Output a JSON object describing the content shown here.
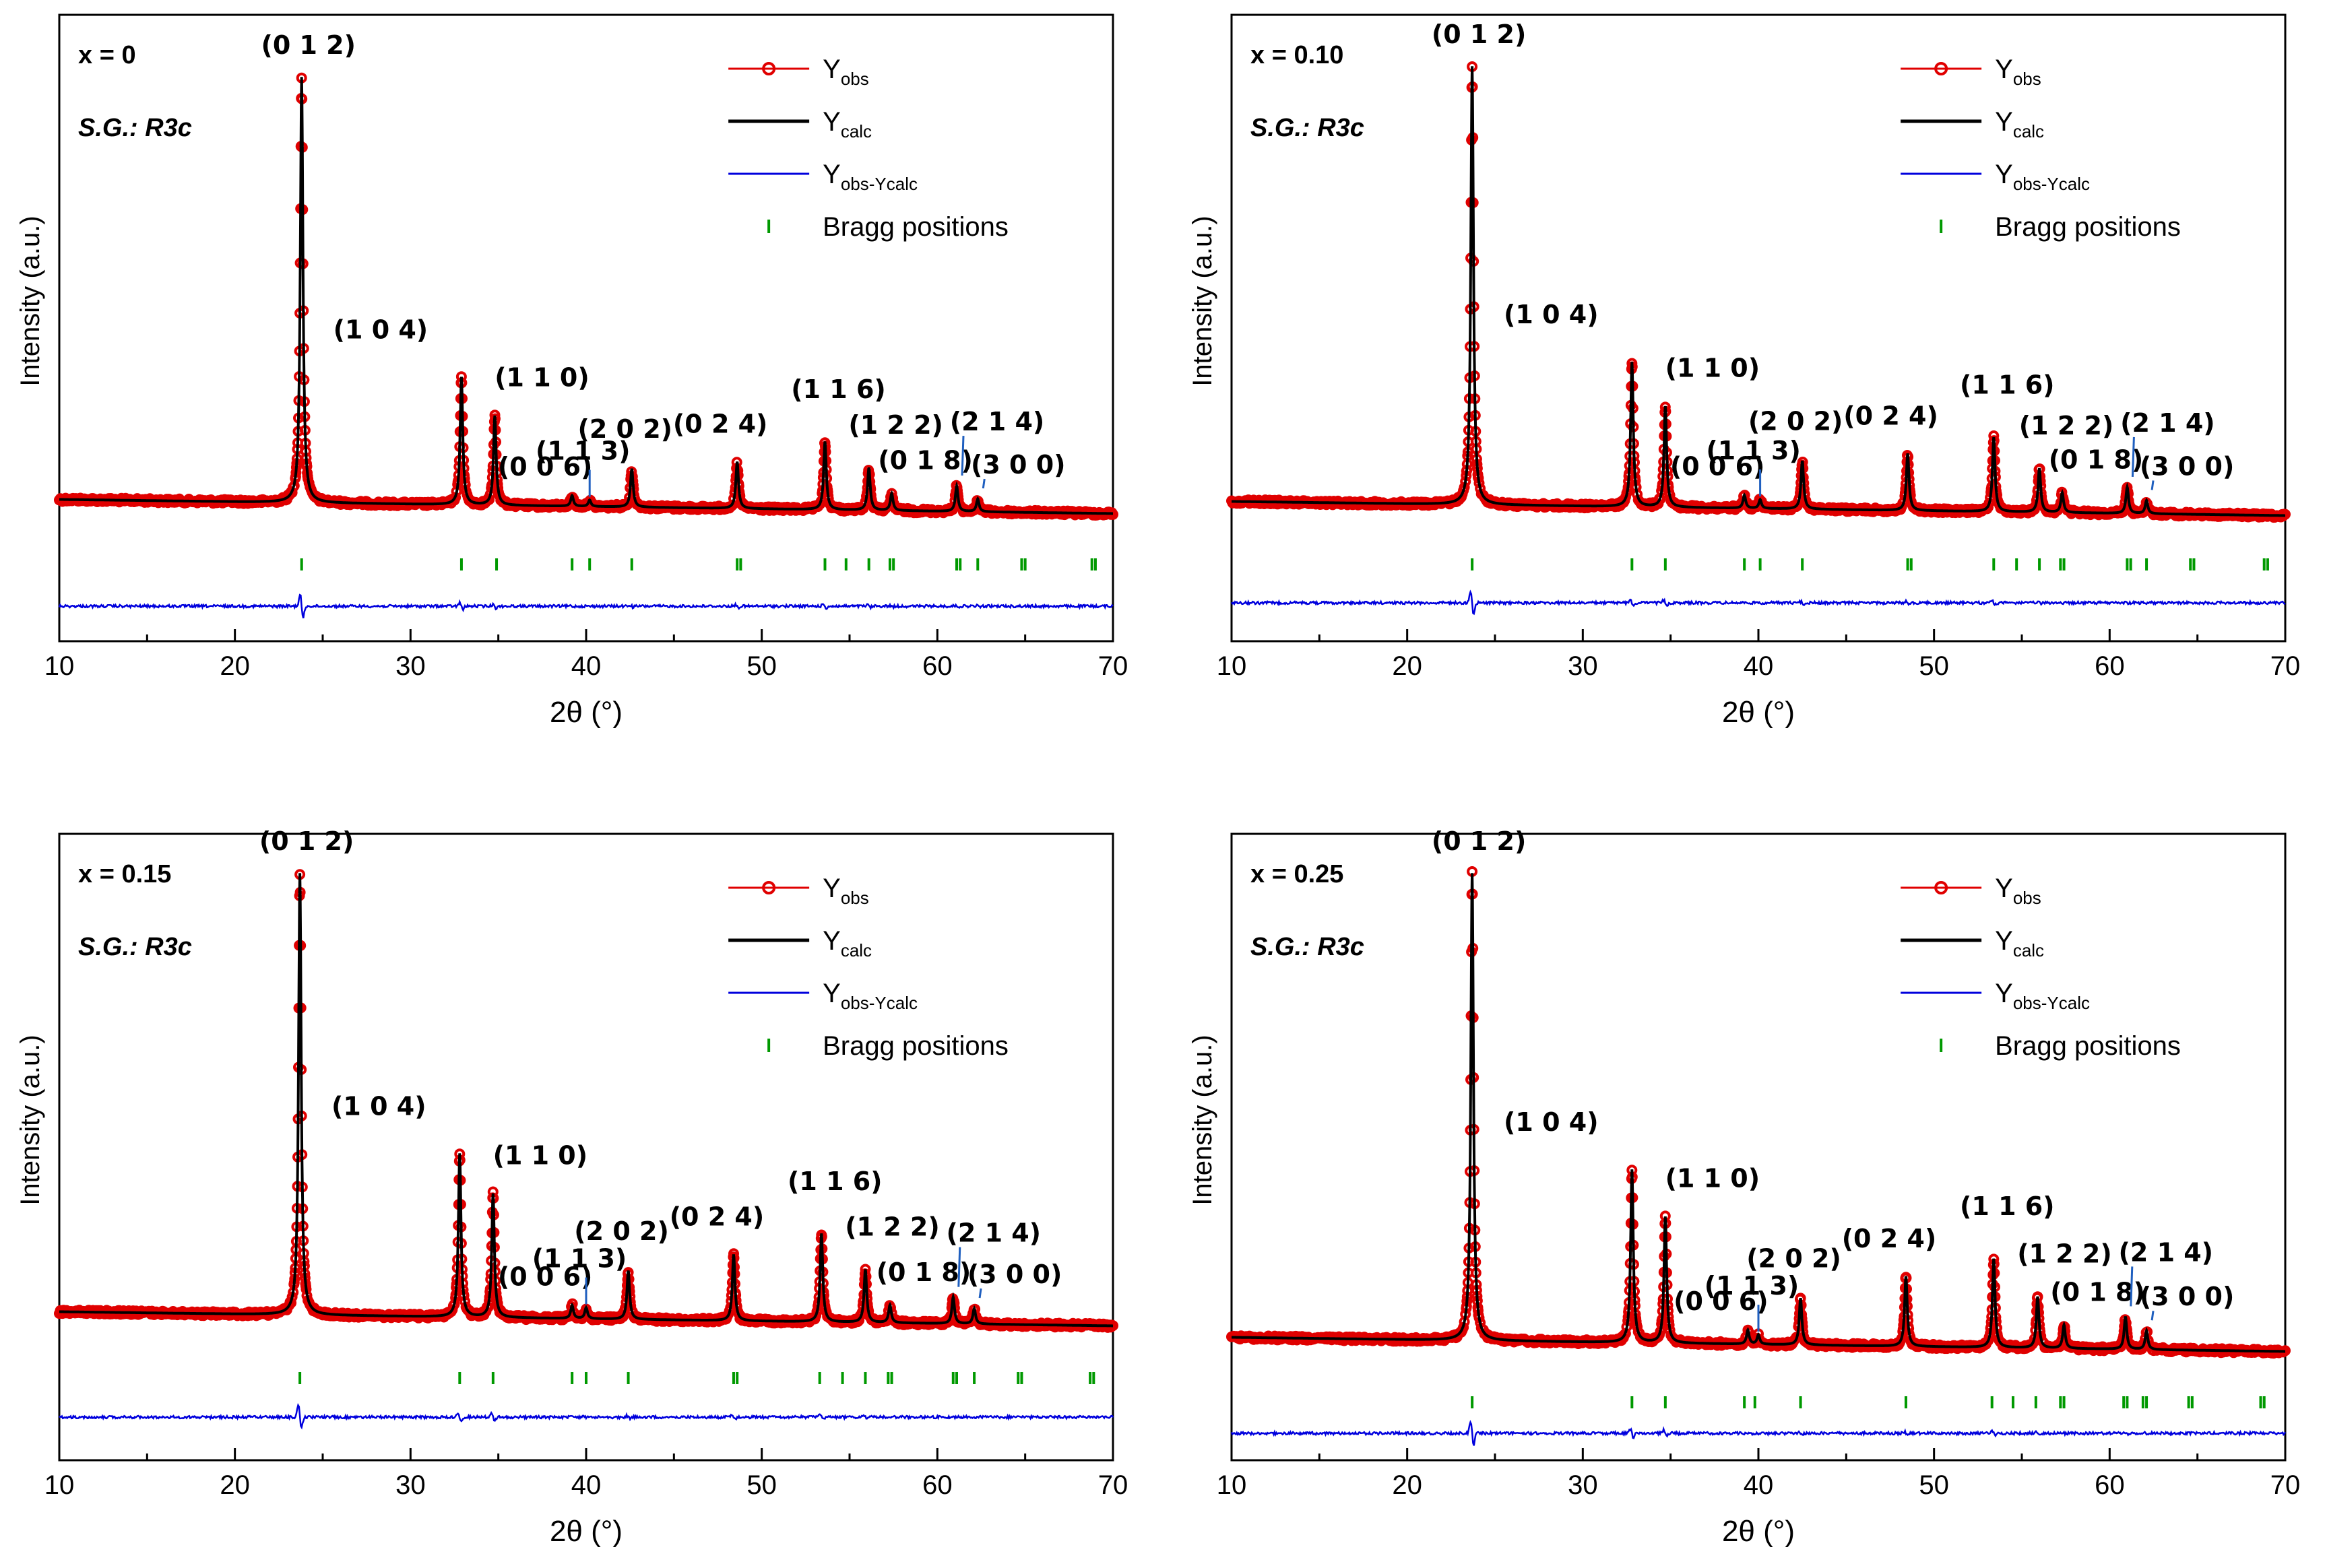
{
  "chart_data": [
    {
      "type": "scatter",
      "composition": "x = 0",
      "space_group": "S.G.: R3c",
      "xlabel": "2θ (°)",
      "ylabel": "Intensity (a.u.)",
      "xlim": [
        10,
        70
      ],
      "xticks": [
        10,
        20,
        30,
        40,
        50,
        60,
        70
      ],
      "legend": {
        "position": "top-right",
        "entries": [
          {
            "main": "Y",
            "sub": "obs",
            "kind": "observed"
          },
          {
            "main": "Y",
            "sub": "calc",
            "kind": "calculated"
          },
          {
            "main": "Y",
            "sub": "obs-Ycalc",
            "kind": "difference"
          },
          {
            "main": "Bragg positions",
            "sub": "",
            "kind": "bragg"
          }
        ]
      },
      "peaks": [
        {
          "hkl": "(0 1 2)",
          "x": 23.8,
          "intensity": 1.0
        },
        {
          "hkl": "(1 0 4)",
          "x": 32.9,
          "intensity": 0.3
        },
        {
          "hkl": "(1 1 0)",
          "x": 34.8,
          "intensity": 0.21
        },
        {
          "hkl": "(0 0 6)",
          "x": 39.2,
          "intensity": 0.025
        },
        {
          "hkl": "(1 1 3)",
          "x": 40.2,
          "intensity": 0.015
        },
        {
          "hkl": "(2 0 2)",
          "x": 42.6,
          "intensity": 0.09
        },
        {
          "hkl": "(0 2 4)",
          "x": 48.6,
          "intensity": 0.11
        },
        {
          "hkl": "(1 1 6)",
          "x": 53.6,
          "intensity": 0.16
        },
        {
          "hkl": "(1 2 2)",
          "x": 56.1,
          "intensity": 0.1
        },
        {
          "hkl": "(0 1 8)",
          "x": 57.4,
          "intensity": 0.04
        },
        {
          "hkl": "(2 1 4)",
          "x": 61.1,
          "intensity": 0.06
        },
        {
          "hkl": "(3 0 0)",
          "x": 62.3,
          "intensity": 0.03
        }
      ],
      "bragg_positions": [
        23.8,
        32.9,
        34.9,
        39.2,
        40.2,
        42.6,
        48.6,
        48.8,
        53.6,
        54.8,
        56.1,
        57.3,
        57.5,
        61.1,
        61.3,
        62.3,
        64.8,
        65.0,
        68.8,
        69.0
      ]
    },
    {
      "type": "scatter",
      "composition": "x = 0.10",
      "space_group": "S.G.: R3c",
      "xlabel": "2θ (°)",
      "ylabel": "Intensity (a.u.)",
      "xlim": [
        10,
        70
      ],
      "xticks": [
        10,
        20,
        30,
        40,
        50,
        60,
        70
      ],
      "legend": {
        "position": "top-right",
        "entries": [
          {
            "main": "Y",
            "sub": "obs",
            "kind": "observed"
          },
          {
            "main": "Y",
            "sub": "calc",
            "kind": "calculated"
          },
          {
            "main": "Y",
            "sub": "obs-Ycalc",
            "kind": "difference"
          },
          {
            "main": "Bragg positions",
            "sub": "",
            "kind": "bragg"
          }
        ]
      },
      "peaks": [
        {
          "hkl": "(0 1 2)",
          "x": 23.7,
          "intensity": 1.0
        },
        {
          "hkl": "(1 0 4)",
          "x": 32.8,
          "intensity": 0.33
        },
        {
          "hkl": "(1 1 0)",
          "x": 34.7,
          "intensity": 0.23
        },
        {
          "hkl": "(0 0 6)",
          "x": 39.2,
          "intensity": 0.03
        },
        {
          "hkl": "(1 1 3)",
          "x": 40.1,
          "intensity": 0.02
        },
        {
          "hkl": "(2 0 2)",
          "x": 42.5,
          "intensity": 0.11
        },
        {
          "hkl": "(0 2 4)",
          "x": 48.5,
          "intensity": 0.13
        },
        {
          "hkl": "(1 1 6)",
          "x": 53.4,
          "intensity": 0.17
        },
        {
          "hkl": "(1 2 2)",
          "x": 56.0,
          "intensity": 0.1
        },
        {
          "hkl": "(0 1 8)",
          "x": 57.3,
          "intensity": 0.045
        },
        {
          "hkl": "(2 1 4)",
          "x": 61.0,
          "intensity": 0.06
        },
        {
          "hkl": "(3 0 0)",
          "x": 62.1,
          "intensity": 0.03
        }
      ],
      "bragg_positions": [
        23.7,
        32.8,
        34.7,
        39.2,
        40.1,
        42.5,
        48.5,
        48.7,
        53.4,
        54.7,
        56.0,
        57.2,
        57.4,
        61.0,
        61.2,
        62.1,
        64.6,
        64.8,
        68.8,
        69.0
      ]
    },
    {
      "type": "scatter",
      "composition": "x = 0.15",
      "space_group": "S.G.: R3c",
      "xlabel": "2θ (°)",
      "ylabel": "Intensity (a.u.)",
      "xlim": [
        10,
        70
      ],
      "xticks": [
        10,
        20,
        30,
        40,
        50,
        60,
        70
      ],
      "legend": {
        "position": "top-right",
        "entries": [
          {
            "main": "Y",
            "sub": "obs",
            "kind": "observed"
          },
          {
            "main": "Y",
            "sub": "calc",
            "kind": "calculated"
          },
          {
            "main": "Y",
            "sub": "obs-Ycalc",
            "kind": "difference"
          },
          {
            "main": "Bragg positions",
            "sub": "",
            "kind": "bragg"
          }
        ]
      },
      "peaks": [
        {
          "hkl": "(0 1 2)",
          "x": 23.7,
          "intensity": 1.0
        },
        {
          "hkl": "(1 0 4)",
          "x": 32.8,
          "intensity": 0.37
        },
        {
          "hkl": "(1 1 0)",
          "x": 34.7,
          "intensity": 0.28
        },
        {
          "hkl": "(0 0 6)",
          "x": 39.2,
          "intensity": 0.03
        },
        {
          "hkl": "(1 1 3)",
          "x": 40.0,
          "intensity": 0.025
        },
        {
          "hkl": "(2 0 2)",
          "x": 42.4,
          "intensity": 0.11
        },
        {
          "hkl": "(0 2 4)",
          "x": 48.4,
          "intensity": 0.15
        },
        {
          "hkl": "(1 1 6)",
          "x": 53.4,
          "intensity": 0.2
        },
        {
          "hkl": "(1 2 2)",
          "x": 55.9,
          "intensity": 0.12
        },
        {
          "hkl": "(0 1 8)",
          "x": 57.3,
          "intensity": 0.04
        },
        {
          "hkl": "(2 1 4)",
          "x": 60.9,
          "intensity": 0.06
        },
        {
          "hkl": "(3 0 0)",
          "x": 62.1,
          "intensity": 0.035
        }
      ],
      "bragg_positions": [
        23.7,
        32.8,
        34.7,
        39.2,
        40.0,
        42.4,
        48.4,
        48.6,
        53.3,
        54.6,
        55.9,
        57.2,
        57.4,
        60.9,
        61.1,
        62.1,
        64.6,
        64.8,
        68.7,
        68.9
      ]
    },
    {
      "type": "scatter",
      "composition": "x = 0.25",
      "space_group": "S.G.: R3c",
      "xlabel": "2θ (°)",
      "ylabel": "Intensity (a.u.)",
      "xlim": [
        10,
        70
      ],
      "xticks": [
        10,
        20,
        30,
        40,
        50,
        60,
        70
      ],
      "legend": {
        "position": "top-right",
        "entries": [
          {
            "main": "Y",
            "sub": "obs",
            "kind": "observed"
          },
          {
            "main": "Y",
            "sub": "calc",
            "kind": "calculated"
          },
          {
            "main": "Y",
            "sub": "obs-Ycalc",
            "kind": "difference"
          },
          {
            "main": "Bragg positions",
            "sub": "",
            "kind": "bragg"
          }
        ]
      },
      "peaks": [
        {
          "hkl": "(0 1 2)",
          "x": 23.7,
          "intensity": 1.0
        },
        {
          "hkl": "(1 0 4)",
          "x": 32.8,
          "intensity": 0.37
        },
        {
          "hkl": "(1 1 0)",
          "x": 34.7,
          "intensity": 0.27
        },
        {
          "hkl": "(0 0 6)",
          "x": 39.4,
          "intensity": 0.03
        },
        {
          "hkl": "(1 1 3)",
          "x": 40.0,
          "intensity": 0.02
        },
        {
          "hkl": "(2 0 2)",
          "x": 42.4,
          "intensity": 0.1
        },
        {
          "hkl": "(0 2 4)",
          "x": 48.4,
          "intensity": 0.15
        },
        {
          "hkl": "(1 1 6)",
          "x": 53.4,
          "intensity": 0.19
        },
        {
          "hkl": "(1 2 2)",
          "x": 55.9,
          "intensity": 0.11
        },
        {
          "hkl": "(0 1 8)",
          "x": 57.4,
          "intensity": 0.05
        },
        {
          "hkl": "(2 1 4)",
          "x": 60.9,
          "intensity": 0.07
        },
        {
          "hkl": "(3 0 0)",
          "x": 62.1,
          "intensity": 0.04
        }
      ],
      "bragg_positions": [
        23.7,
        32.8,
        34.7,
        39.2,
        39.8,
        42.4,
        48.4,
        53.3,
        54.5,
        55.8,
        57.2,
        57.4,
        60.8,
        61.0,
        61.9,
        62.1,
        64.5,
        64.7,
        68.6,
        68.8
      ]
    }
  ],
  "colors": {
    "observed": "#e00000",
    "calculated": "#000000",
    "difference": "#0000dd",
    "bragg": "#009900",
    "annotation_line": "#1f5fbf"
  }
}
